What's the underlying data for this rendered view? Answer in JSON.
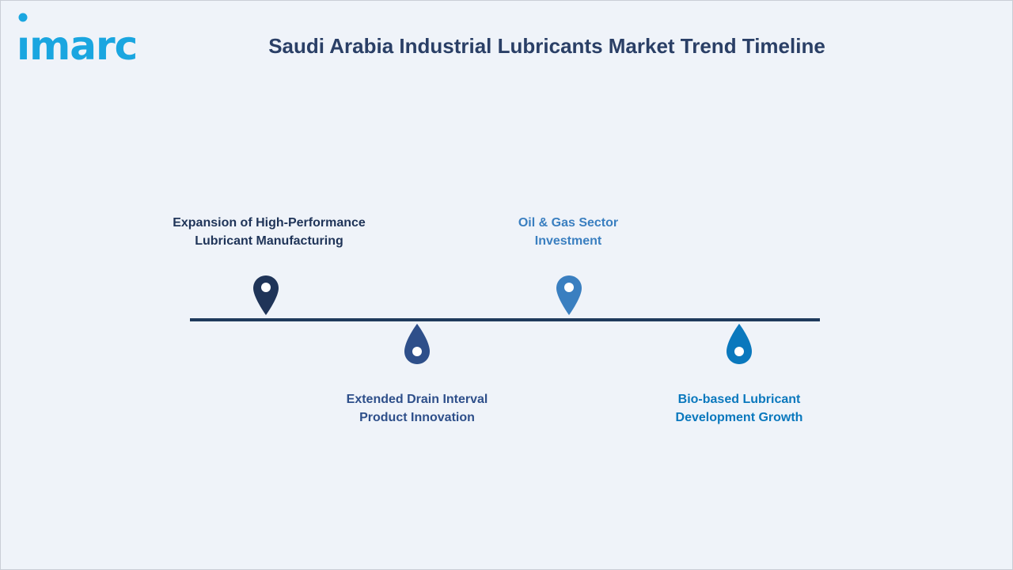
{
  "logo": {
    "text": "imarc",
    "color": "#1aa6e0"
  },
  "title": "Saudi Arabia Industrial Lubricants Market Trend Timeline",
  "timeline": {
    "items": [
      {
        "line1": "Expansion of High-Performance",
        "line2": "Lubricant Manufacturing",
        "color": "#1f3458",
        "position": "above"
      },
      {
        "line1": "Extended Drain Interval",
        "line2": "Product Innovation",
        "color": "#2e4f8a",
        "position": "below"
      },
      {
        "line1": "Oil & Gas Sector",
        "line2": "Investment",
        "color": "#3a7fc0",
        "position": "above"
      },
      {
        "line1": "Bio-based Lubricant",
        "line2": "Development Growth",
        "color": "#0a78bd",
        "position": "below"
      }
    ]
  }
}
